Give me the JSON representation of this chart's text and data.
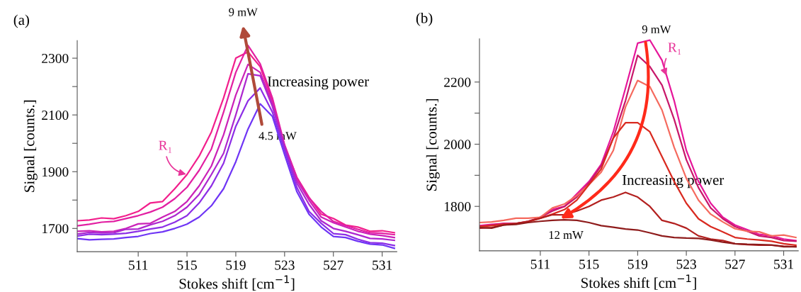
{
  "chart_data": [
    {
      "type": "line",
      "title": "(a)",
      "xlabel": "Stokes shift [cm$^{−1}$]",
      "ylabel": "Signal [counts.]",
      "x": [
        506,
        507,
        508,
        509,
        510,
        511,
        512,
        513,
        514,
        515,
        516,
        517,
        518,
        519,
        520,
        521,
        522,
        523,
        524,
        525,
        526,
        527,
        528,
        529,
        530,
        531,
        532
      ],
      "series": [
        {
          "color": "#f21f8c",
          "values": [
            1727,
            1730,
            1737,
            1734,
            1745,
            1760,
            1790,
            1795,
            1840,
            1890,
            1955,
            2040,
            2160,
            2300,
            2322,
            2270,
            2150,
            1990,
            1880,
            1810,
            1750,
            1735,
            1712,
            1705,
            1690,
            1692,
            1685
          ]
        },
        {
          "color": "#e21fa2",
          "values": [
            1709,
            1715,
            1722,
            1725,
            1735,
            1745,
            1758,
            1775,
            1805,
            1845,
            1905,
            1980,
            2110,
            2250,
            2345,
            2280,
            2160,
            1995,
            1880,
            1808,
            1760,
            1725,
            1710,
            1697,
            1685,
            1683,
            1678
          ]
        },
        {
          "color": "#cb22b8",
          "values": [
            1690,
            1692,
            1688,
            1690,
            1700,
            1716,
            1718,
            1740,
            1760,
            1795,
            1850,
            1920,
            2030,
            2170,
            2278,
            2250,
            2140,
            1990,
            1870,
            1800,
            1740,
            1720,
            1705,
            1690,
            1680,
            1675,
            1668
          ]
        },
        {
          "color": "#ad27cf",
          "values": [
            1680,
            1686,
            1684,
            1685,
            1697,
            1698,
            1713,
            1725,
            1745,
            1775,
            1820,
            1890,
            1965,
            2100,
            2245,
            2238,
            2130,
            1985,
            1860,
            1785,
            1727,
            1700,
            1690,
            1678,
            1665,
            1663,
            1658
          ]
        },
        {
          "color": "#8d2ee6",
          "values": [
            1673,
            1680,
            1678,
            1680,
            1683,
            1690,
            1698,
            1705,
            1722,
            1745,
            1790,
            1850,
            1930,
            2060,
            2150,
            2195,
            2110,
            1975,
            1845,
            1760,
            1718,
            1682,
            1678,
            1662,
            1650,
            1648,
            1640
          ]
        },
        {
          "color": "#6f35f5",
          "values": [
            1664,
            1660,
            1662,
            1663,
            1668,
            1672,
            1682,
            1688,
            1700,
            1715,
            1740,
            1780,
            1840,
            1935,
            2050,
            2139,
            2095,
            1960,
            1830,
            1750,
            1705,
            1672,
            1668,
            1655,
            1645,
            1642,
            1630
          ]
        }
      ],
      "xlim": [
        506,
        532.2
      ],
      "xticks": [
        511,
        515,
        519,
        523,
        527,
        531
      ],
      "ylim": [
        1618,
        2362
      ],
      "yticks": [
        1700,
        {
          "value": 1800,
          "label": null
        },
        1900,
        {
          "value": 2000,
          "label": null
        },
        2100,
        {
          "value": 2200,
          "label": null
        },
        2300
      ],
      "grid": false,
      "annotations": [
        "9 mW",
        "Increasing power",
        "4.5 mW",
        {
          "text": "R₁",
          "x": 515,
          "y": 1890
        }
      ]
    },
    {
      "type": "line",
      "title": "(b)",
      "xlabel": "Stokes shift [cm$^{−1}$]",
      "ylabel": "Signal [counts.]",
      "x": [
        506,
        507,
        508,
        509,
        510,
        511,
        512,
        513,
        514,
        515,
        516,
        517,
        518,
        519,
        520,
        521,
        522,
        523,
        524,
        525,
        526,
        527,
        528,
        529,
        530,
        531,
        532
      ],
      "series": [
        {
          "color": "#e6179a",
          "values": [
            1738,
            1742,
            1745,
            1745,
            1750,
            1765,
            1790,
            1800,
            1840,
            1880,
            1935,
            2040,
            2180,
            2325,
            2335,
            2270,
            2140,
            1980,
            1880,
            1810,
            1765,
            1740,
            1725,
            1710,
            1705,
            1695,
            1690
          ]
        },
        {
          "color": "#c8186a",
          "values": [
            1735,
            1740,
            1745,
            1745,
            1752,
            1765,
            1785,
            1800,
            1830,
            1875,
            1930,
            2020,
            2140,
            2286,
            2250,
            2190,
            2080,
            1950,
            1860,
            1795,
            1760,
            1735,
            1720,
            1705,
            1700,
            1690,
            1688
          ]
        },
        {
          "color": "#f56a5e",
          "values": [
            1748,
            1750,
            1755,
            1762,
            1762,
            1765,
            1795,
            1808,
            1835,
            1870,
            1910,
            1980,
            2120,
            2205,
            2185,
            2110,
            1990,
            1890,
            1820,
            1775,
            1750,
            1728,
            1720,
            1718,
            1705,
            1708,
            1700
          ]
        },
        {
          "color": "#d92a20",
          "values": [
            1735,
            1738,
            1742,
            1745,
            1750,
            1762,
            1775,
            1790,
            1820,
            1870,
            1920,
            2020,
            2069,
            2069,
            2040,
            1960,
            1880,
            1810,
            1760,
            1735,
            1718,
            1700,
            1695,
            1692,
            1688,
            1680,
            1675
          ]
        },
        {
          "color": "#b3201f",
          "values": [
            1730,
            1732,
            1740,
            1745,
            1752,
            1762,
            1773,
            1773,
            1785,
            1800,
            1820,
            1830,
            1845,
            1830,
            1800,
            1755,
            1745,
            1730,
            1705,
            1695,
            1690,
            1680,
            1677,
            1675,
            1675,
            1672,
            1670
          ]
        },
        {
          "color": "#8e1b1b",
          "values": [
            1732,
            1730,
            1740,
            1742,
            1748,
            1752,
            1755,
            1757,
            1755,
            1748,
            1738,
            1733,
            1727,
            1724,
            1715,
            1705,
            1700,
            1698,
            1697,
            1692,
            1685,
            1680,
            1678,
            1677,
            1676,
            1670,
            1670
          ]
        }
      ],
      "xlim": [
        506,
        532.2
      ],
      "xticks": [
        511,
        515,
        519,
        523,
        527,
        531
      ],
      "ylim": [
        1657,
        2339
      ],
      "yticks": [
        1800,
        {
          "value": 1900,
          "label": null
        },
        2000,
        {
          "value": 2100,
          "label": null
        },
        2200
      ],
      "grid": false,
      "annotations": [
        "9 mW",
        "Increasing power",
        "12 mW",
        {
          "text": "R₁",
          "x": 521.4,
          "y": 2218
        }
      ]
    }
  ]
}
